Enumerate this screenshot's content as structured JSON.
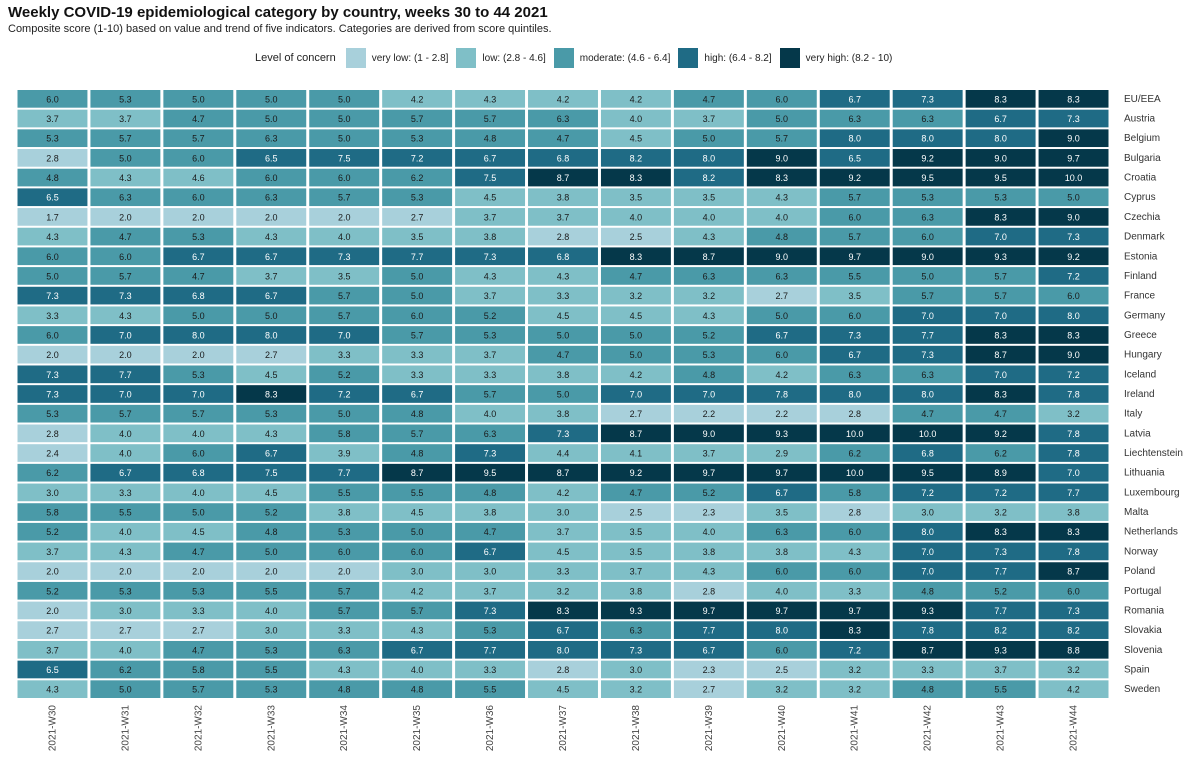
{
  "chart_data": {
    "type": "heatmap",
    "title": "Weekly COVID-19 epidemiological category by country, weeks 30 to 44 2021",
    "subtitle": "Composite score (1-10) based on value and trend of five indicators. Categories are derived from score quintiles.",
    "legend": {
      "title": "Level of concern",
      "placement": "top",
      "items": [
        {
          "label": "very low: (1 - 2.8]",
          "color": "#a8d0db"
        },
        {
          "label": "low: (2.8 - 4.6]",
          "color": "#7fbfc7"
        },
        {
          "label": "moderate: (4.6 - 6.4]",
          "color": "#4a9aa8"
        },
        {
          "label": "high: (6.4 - 8.2]",
          "color": "#1f6b85"
        },
        {
          "label": "very high: (8.2 - 10)",
          "color": "#05384a"
        }
      ]
    },
    "columns": [
      "2021-W30",
      "2021-W31",
      "2021-W32",
      "2021-W33",
      "2021-W34",
      "2021-W35",
      "2021-W36",
      "2021-W37",
      "2021-W38",
      "2021-W39",
      "2021-W40",
      "2021-W41",
      "2021-W42",
      "2021-W43",
      "2021-W44"
    ],
    "rows": [
      {
        "country": "EU/EEA",
        "values": [
          6.0,
          5.3,
          5.0,
          5.0,
          5.0,
          4.2,
          4.3,
          4.2,
          4.2,
          4.7,
          6.0,
          6.7,
          7.3,
          8.3,
          8.3
        ]
      },
      {
        "country": "Austria",
        "values": [
          3.7,
          3.7,
          4.7,
          5.0,
          5.0,
          5.7,
          5.7,
          6.3,
          4.0,
          3.7,
          5.0,
          6.3,
          6.3,
          6.7,
          7.3
        ]
      },
      {
        "country": "Belgium",
        "values": [
          5.3,
          5.7,
          5.7,
          6.3,
          5.0,
          5.3,
          4.8,
          4.7,
          4.5,
          5.0,
          5.7,
          8.0,
          8.0,
          8.0,
          9.0
        ]
      },
      {
        "country": "Bulgaria",
        "values": [
          2.8,
          5.0,
          6.0,
          6.5,
          7.5,
          7.2,
          6.7,
          6.8,
          8.2,
          8.0,
          9.0,
          6.5,
          9.2,
          9.0,
          9.7
        ]
      },
      {
        "country": "Croatia",
        "values": [
          4.8,
          4.3,
          4.6,
          6.0,
          6.0,
          6.2,
          7.5,
          8.7,
          8.3,
          8.2,
          8.3,
          9.2,
          9.5,
          9.5,
          10.0
        ]
      },
      {
        "country": "Cyprus",
        "values": [
          6.5,
          6.3,
          6.0,
          6.3,
          5.7,
          5.3,
          4.5,
          3.8,
          3.5,
          3.5,
          4.3,
          5.7,
          5.3,
          5.3,
          5.0
        ]
      },
      {
        "country": "Czechia",
        "values": [
          1.7,
          2.0,
          2.0,
          2.0,
          2.0,
          2.7,
          3.7,
          3.7,
          4.0,
          4.0,
          4.0,
          6.0,
          6.3,
          8.3,
          9.0
        ]
      },
      {
        "country": "Denmark",
        "values": [
          4.3,
          4.7,
          5.3,
          4.3,
          4.0,
          3.5,
          3.8,
          2.8,
          2.5,
          4.3,
          4.8,
          5.7,
          6.0,
          7.0,
          7.3
        ]
      },
      {
        "country": "Estonia",
        "values": [
          6.0,
          6.0,
          6.7,
          6.7,
          7.3,
          7.7,
          7.3,
          6.8,
          8.3,
          8.7,
          9.0,
          9.7,
          9.0,
          9.3,
          9.2
        ]
      },
      {
        "country": "Finland",
        "values": [
          5.0,
          5.7,
          4.7,
          3.7,
          3.5,
          5.0,
          4.3,
          4.3,
          4.7,
          6.3,
          6.3,
          5.5,
          5.0,
          5.7,
          7.2
        ]
      },
      {
        "country": "France",
        "values": [
          7.3,
          7.3,
          6.8,
          6.7,
          5.7,
          5.0,
          3.7,
          3.3,
          3.2,
          3.2,
          2.7,
          3.5,
          5.7,
          5.7,
          6.0
        ]
      },
      {
        "country": "Germany",
        "values": [
          3.3,
          4.3,
          5.0,
          5.0,
          5.7,
          6.0,
          5.2,
          4.5,
          4.5,
          4.3,
          5.0,
          6.0,
          7.0,
          7.0,
          8.0
        ]
      },
      {
        "country": "Greece",
        "values": [
          6.0,
          7.0,
          8.0,
          8.0,
          7.0,
          5.7,
          5.3,
          5.0,
          5.0,
          5.2,
          6.7,
          7.3,
          7.7,
          8.3,
          8.3
        ]
      },
      {
        "country": "Hungary",
        "values": [
          2.0,
          2.0,
          2.0,
          2.7,
          3.3,
          3.3,
          3.7,
          4.7,
          5.0,
          5.3,
          6.0,
          6.7,
          7.3,
          8.7,
          9.0
        ]
      },
      {
        "country": "Iceland",
        "values": [
          7.3,
          7.7,
          5.3,
          4.5,
          5.2,
          3.3,
          3.3,
          3.8,
          4.2,
          4.8,
          4.2,
          6.3,
          6.3,
          7.0,
          7.2
        ]
      },
      {
        "country": "Ireland",
        "values": [
          7.3,
          7.0,
          7.0,
          8.3,
          7.2,
          6.7,
          5.7,
          5.0,
          7.0,
          7.0,
          7.8,
          8.0,
          8.0,
          8.3,
          7.8
        ]
      },
      {
        "country": "Italy",
        "values": [
          5.3,
          5.7,
          5.7,
          5.3,
          5.0,
          4.8,
          4.0,
          3.8,
          2.7,
          2.2,
          2.2,
          2.8,
          4.7,
          4.7,
          3.2
        ]
      },
      {
        "country": "Latvia",
        "values": [
          2.8,
          4.0,
          4.0,
          4.3,
          5.8,
          5.7,
          6.3,
          7.3,
          8.7,
          9.0,
          9.3,
          10.0,
          10.0,
          9.2,
          7.8
        ]
      },
      {
        "country": "Liechtenstein",
        "values": [
          2.4,
          4.0,
          6.0,
          6.7,
          3.9,
          4.8,
          7.3,
          4.4,
          4.1,
          3.7,
          2.9,
          6.2,
          6.8,
          6.2,
          7.8
        ]
      },
      {
        "country": "Lithuania",
        "values": [
          6.2,
          6.7,
          6.8,
          7.5,
          7.7,
          8.7,
          9.5,
          8.7,
          9.2,
          9.7,
          9.7,
          10.0,
          9.5,
          8.9,
          7.0
        ]
      },
      {
        "country": "Luxembourg",
        "values": [
          3.0,
          3.3,
          4.0,
          4.5,
          5.5,
          5.5,
          4.8,
          4.2,
          4.7,
          5.2,
          6.7,
          5.8,
          7.2,
          7.2,
          7.7
        ]
      },
      {
        "country": "Malta",
        "values": [
          5.8,
          5.5,
          5.0,
          5.2,
          3.8,
          4.5,
          3.8,
          3.0,
          2.5,
          2.3,
          3.5,
          2.8,
          3.0,
          3.2,
          3.8
        ]
      },
      {
        "country": "Netherlands",
        "values": [
          5.2,
          4.0,
          4.5,
          4.8,
          5.3,
          5.0,
          4.7,
          3.7,
          3.5,
          4.0,
          6.3,
          6.0,
          8.0,
          8.3,
          8.3
        ]
      },
      {
        "country": "Norway",
        "values": [
          3.7,
          4.3,
          4.7,
          5.0,
          6.0,
          6.0,
          6.7,
          4.5,
          3.5,
          3.8,
          3.8,
          4.3,
          7.0,
          7.3,
          7.8
        ]
      },
      {
        "country": "Poland",
        "values": [
          2.0,
          2.0,
          2.0,
          2.0,
          2.0,
          3.0,
          3.0,
          3.3,
          3.7,
          4.3,
          6.0,
          6.0,
          7.0,
          7.7,
          8.7
        ]
      },
      {
        "country": "Portugal",
        "values": [
          5.2,
          5.3,
          5.3,
          5.5,
          5.7,
          4.2,
          3.7,
          3.2,
          3.8,
          2.8,
          4.0,
          3.3,
          4.8,
          5.2,
          6.0
        ]
      },
      {
        "country": "Romania",
        "values": [
          2.0,
          3.0,
          3.3,
          4.0,
          5.7,
          5.7,
          7.3,
          8.3,
          9.3,
          9.7,
          9.7,
          9.7,
          9.3,
          7.7,
          7.3
        ]
      },
      {
        "country": "Slovakia",
        "values": [
          2.7,
          2.7,
          2.7,
          3.0,
          3.3,
          4.3,
          5.3,
          6.7,
          6.3,
          7.7,
          8.0,
          8.3,
          7.8,
          8.2,
          8.2
        ]
      },
      {
        "country": "Slovenia",
        "values": [
          3.7,
          4.0,
          4.7,
          5.3,
          6.3,
          6.7,
          7.7,
          8.0,
          7.3,
          6.7,
          6.0,
          7.2,
          8.7,
          9.3,
          8.8
        ]
      },
      {
        "country": "Spain",
        "values": [
          6.5,
          6.2,
          5.8,
          5.5,
          4.3,
          4.0,
          3.3,
          2.8,
          3.0,
          2.3,
          2.5,
          3.2,
          3.3,
          3.7,
          3.2
        ]
      },
      {
        "country": "Sweden",
        "values": [
          4.3,
          5.0,
          5.7,
          5.3,
          4.8,
          4.8,
          5.5,
          4.5,
          3.2,
          2.7,
          3.2,
          3.2,
          4.8,
          5.5,
          4.2
        ]
      }
    ]
  }
}
